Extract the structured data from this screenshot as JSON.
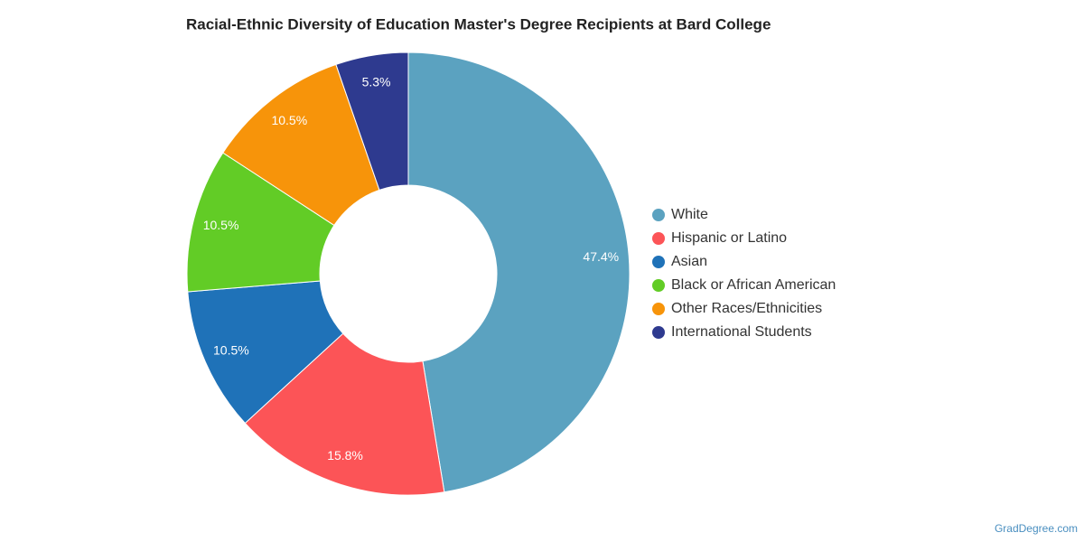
{
  "chart_data": {
    "type": "donut",
    "title": "Racial-Ethnic Diversity of Education Master's Degree Recipients at Bard College",
    "categories": [
      "White",
      "Hispanic or Latino",
      "Asian",
      "Black or African American",
      "Other Races/Ethnicities",
      "International Students"
    ],
    "values": [
      47.4,
      15.8,
      10.5,
      10.5,
      10.5,
      5.3
    ],
    "value_labels": [
      "47.4%",
      "15.8%",
      "10.5%",
      "10.5%",
      "10.5%",
      "5.3%"
    ],
    "colors": [
      "#5ba2c0",
      "#fc5457",
      "#1f72b8",
      "#62cc26",
      "#f7940a",
      "#2e3a8f"
    ],
    "legend": "right",
    "credit": "GradDegree.com"
  }
}
